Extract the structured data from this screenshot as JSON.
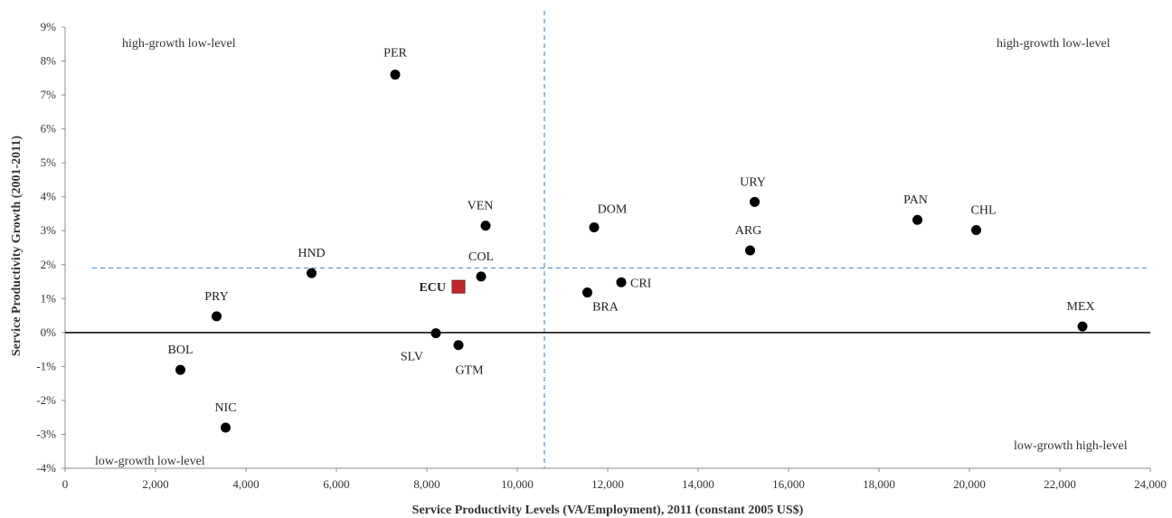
{
  "chart_data": {
    "type": "scatter",
    "xlabel": "Service Productivity  Levels (VA/Employment), 2011 (constant  2005 US$)",
    "ylabel": "Service Productivity Growth (2001-2011)",
    "xlim": [
      0,
      24000
    ],
    "ylim": [
      -4,
      9
    ],
    "x_ticks": [
      0,
      2000,
      4000,
      6000,
      8000,
      10000,
      12000,
      14000,
      16000,
      18000,
      20000,
      22000,
      24000
    ],
    "x_tick_labels": [
      "0",
      "2,000",
      "4,000",
      "6,000",
      "8,000",
      "10,000",
      "12,000",
      "14,000",
      "16,000",
      "18,000",
      "20,000",
      "22,000",
      "24,000"
    ],
    "y_ticks": [
      -4,
      -3,
      -2,
      -1,
      0,
      1,
      2,
      3,
      4,
      5,
      6,
      7,
      8,
      9
    ],
    "y_tick_labels": [
      "-4%",
      "-3%",
      "-2%",
      "-1%",
      "0%",
      "1%",
      "2%",
      "3%",
      "4%",
      "5%",
      "6%",
      "7%",
      "8%",
      "9%"
    ],
    "reference_lines": {
      "x_mean": 10600,
      "y_mean": 1.9,
      "style": "dashed",
      "color": "#5b9bd5"
    },
    "points": [
      {
        "label": "PER",
        "x": 7300,
        "y": 7.6
      },
      {
        "label": "VEN",
        "x": 9300,
        "y": 3.15
      },
      {
        "label": "HND",
        "x": 5450,
        "y": 1.75
      },
      {
        "label": "COL",
        "x": 9200,
        "y": 1.65
      },
      {
        "label": "ECU",
        "x": 8700,
        "y": 1.35,
        "highlight": true
      },
      {
        "label": "PRY",
        "x": 3350,
        "y": 0.48
      },
      {
        "label": "BOL",
        "x": 2550,
        "y": -1.1
      },
      {
        "label": "NIC",
        "x": 3550,
        "y": -2.8
      },
      {
        "label": "SLV",
        "x": 8200,
        "y": -0.02
      },
      {
        "label": "GTM",
        "x": 8700,
        "y": -0.37
      },
      {
        "label": "DOM",
        "x": 11700,
        "y": 3.1
      },
      {
        "label": "BRA",
        "x": 11550,
        "y": 1.18
      },
      {
        "label": "CRI",
        "x": 12300,
        "y": 1.48
      },
      {
        "label": "URY",
        "x": 15250,
        "y": 3.85
      },
      {
        "label": "ARG",
        "x": 15150,
        "y": 2.42
      },
      {
        "label": "PAN",
        "x": 18850,
        "y": 3.32
      },
      {
        "label": "CHL",
        "x": 20150,
        "y": 3.02
      },
      {
        "label": "MEX",
        "x": 22500,
        "y": 0.18
      }
    ],
    "quadrant_labels": {
      "top_left": "high-growth low-level",
      "top_right": "high-growth low-level",
      "bottom_left": "low-growth low-level",
      "bottom_right": "low-growth high-level"
    },
    "colors": {
      "point": "#000000",
      "highlight": "#c0282d",
      "highlight_label": "#c0282d",
      "axis": "#000000",
      "reference": "#5b9bd5"
    }
  }
}
